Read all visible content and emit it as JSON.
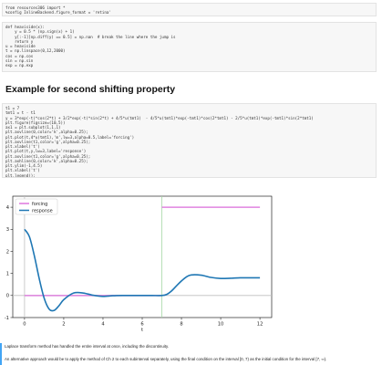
{
  "notebook": {
    "cell1_lines": [
      "from resources306 import *",
      "%config InlineBackend.figure_format = 'retina'"
    ],
    "cell2_lines": [
      "def heaviside(x):",
      "    y = 0.5 * (np.sign(x) + 1)",
      "    y[:-1][np.diff(y) == 0.5] = np.nan  # break the line where the jump is",
      "    return y",
      "u = heaviside",
      "t = np.linspace(0,12,2000)",
      "cos = np.cos",
      "sin = np.sin",
      "exp = np.exp"
    ],
    "heading": "Example for second shifting property",
    "cell3_lines": [
      "t1 = 7",
      "tmt1 = t - t1",
      "y = 3*exp(-t)*cos(2*t) + 3/2*exp(-t)*sin(2*t) + 4/5*u(tmt1)  - 4/5*u(tmt1)*exp(-tmt1)*cos(2*tmt1) - 2/5*u(tmt1)*exp(-tmt1)*sin(2*tmt1)",
      "plt.figure(figsize=(10,5))",
      "ax1 = plt.subplot(1,1,1)",
      "plt.axvline(0,color='k',alpha=0.25);",
      "plt.plot(t,4*u(tmt1),'m',lw=3,alpha=0.5,label='forcing')",
      "plt.axvline(t1,color='g',alpha=0.25);",
      "plt.xlabel('t')",
      "plt.plot(t,y,lw=3,label='response')",
      "plt.axvline(t1,color='g',alpha=0.25);",
      "plt.axhline(0,color='k',alpha=0.25);",
      "plt.ylim(-1,4.5)",
      "plt.xlabel('t')",
      "plt.legend();"
    ],
    "markdown_1": "Laplace transform method has handled the entire interval at once, including the discontinuity.",
    "markdown_2": "An alternative approach would be to apply the method of Ch 2 to each subinterval separately, using the final condition on the interval [0, 7) as the initial condition for the interval [7, ∞)."
  },
  "colors": {
    "forcing": "#dd77dd",
    "response": "#1f77b4",
    "vline": "#a5d7a5",
    "zero_line": "#bfbfbf",
    "selection": "#42a5f5"
  },
  "chart_data": {
    "type": "line",
    "xlabel": "t",
    "ylabel": "",
    "xlim": [
      -0.6,
      12.6
    ],
    "ylim": [
      -1,
      4.5
    ],
    "xticks": [
      0,
      2,
      4,
      6,
      8,
      10,
      12
    ],
    "yticks": [
      -1,
      0,
      1,
      2,
      3,
      4
    ],
    "legend_position": "top-left",
    "vlines": [
      0,
      7
    ],
    "hlines": [
      0
    ],
    "series": [
      {
        "name": "forcing",
        "x": [
          0,
          7,
          7,
          12
        ],
        "y": [
          0,
          0,
          4,
          4
        ]
      },
      {
        "name": "response",
        "x": [
          0,
          0.25,
          0.5,
          0.75,
          1.0,
          1.25,
          1.5,
          1.75,
          2.0,
          2.5,
          3.0,
          3.5,
          4.0,
          4.5,
          5.0,
          5.5,
          6.0,
          6.5,
          7.0,
          7.25,
          7.5,
          7.75,
          8.0,
          8.25,
          8.5,
          9.0,
          9.5,
          10.0,
          10.5,
          11.0,
          11.5,
          12.0
        ],
        "y": [
          3.0,
          2.66,
          1.8,
          0.76,
          -0.12,
          -0.61,
          -0.68,
          -0.47,
          -0.19,
          0.11,
          0.11,
          0.01,
          -0.04,
          -0.01,
          0.0,
          0.0,
          0.0,
          0.0,
          0.0,
          0.05,
          0.21,
          0.44,
          0.66,
          0.84,
          0.93,
          0.92,
          0.82,
          0.77,
          0.78,
          0.8,
          0.8,
          0.8
        ]
      }
    ]
  }
}
